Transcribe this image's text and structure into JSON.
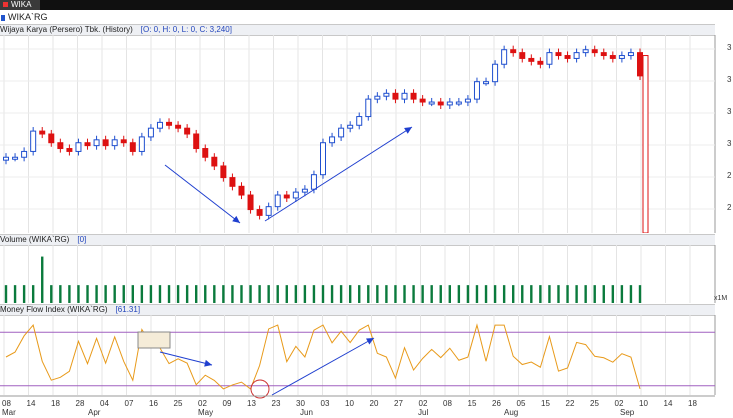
{
  "window": {
    "tab_label": "WIKA"
  },
  "symbol_bar": {
    "symbol": "WIKA`RG"
  },
  "price_panel": {
    "title": "Wijaya Karya (Persero) Tbk. (History)",
    "info": "[O: 0, H: 0, L: 0, C: 3,240]"
  },
  "volume_panel": {
    "title": "Volume (WIKA`RG)",
    "info": "[0]",
    "scale_label": "x1M"
  },
  "mfi_panel": {
    "title": "Money Flow Index (WIKA`RG)",
    "info": "[61.31]"
  },
  "colors": {
    "up": "#1f4fcf",
    "down": "#dd1111",
    "volume": "#0a7a3c",
    "mfi": "#e89a1a",
    "band": "#a060c0",
    "arrow": "#1f3fcf"
  },
  "x_axis": {
    "day_labels": [
      "08",
      "14",
      "18",
      "28",
      "04",
      "07",
      "16",
      "25",
      "02",
      "09",
      "13",
      "23",
      "30",
      "03",
      "10",
      "20",
      "27",
      "02",
      "08",
      "15",
      "26",
      "05",
      "15",
      "22",
      "25",
      "02",
      "10",
      "14",
      "18"
    ],
    "month_labels": [
      "Mar",
      "Apr",
      "May",
      "Jun",
      "Jul",
      "Aug",
      "Sep"
    ]
  },
  "right_axis_fragments": [
    "3",
    "3",
    "3",
    "3",
    "2",
    "2",
    "2"
  ],
  "chart_data": [
    {
      "type": "candlestick",
      "title": "Wijaya Karya (Persero) Tbk. (History)",
      "close_series": [
        2960,
        2960,
        2980,
        3050,
        3040,
        3010,
        2990,
        2980,
        3010,
        3000,
        3020,
        3000,
        3020,
        3010,
        2980,
        3030,
        3060,
        3080,
        3070,
        3060,
        3040,
        2990,
        2960,
        2930,
        2890,
        2860,
        2830,
        2780,
        2760,
        2790,
        2830,
        2820,
        2840,
        2850,
        2900,
        3010,
        3030,
        3060,
        3070,
        3100,
        3160,
        3170,
        3180,
        3160,
        3180,
        3160,
        3150,
        3150,
        3140,
        3150,
        3150,
        3160,
        3220,
        3220,
        3280,
        3330,
        3320,
        3300,
        3290,
        3280,
        3320,
        3310,
        3300,
        3320,
        3330,
        3320,
        3310,
        3300,
        3310,
        3320,
        3240
      ],
      "up_down": "blue = close above open, red = close below open"
    },
    {
      "type": "bar",
      "title": "Volume (WIKA`RG)",
      "values": [
        1,
        1,
        1,
        1,
        2.6,
        1,
        1,
        1,
        1,
        1,
        1,
        1,
        1,
        1,
        1,
        1,
        1,
        1,
        1,
        1,
        1,
        1,
        1,
        1,
        1,
        1,
        1,
        1,
        1,
        1,
        1,
        1,
        1,
        1,
        1,
        1,
        1,
        1,
        1,
        1,
        1,
        1,
        1,
        1,
        1,
        1,
        1,
        1,
        1,
        1,
        1,
        1,
        1,
        1,
        1,
        1,
        1,
        1,
        1,
        1,
        1,
        1,
        1,
        1,
        1,
        1,
        1,
        1,
        1,
        1,
        1
      ]
    },
    {
      "type": "line",
      "title": "Money Flow Index (WIKA`RG)",
      "last_value": 61.31,
      "bands": [
        80,
        20
      ]
    }
  ]
}
